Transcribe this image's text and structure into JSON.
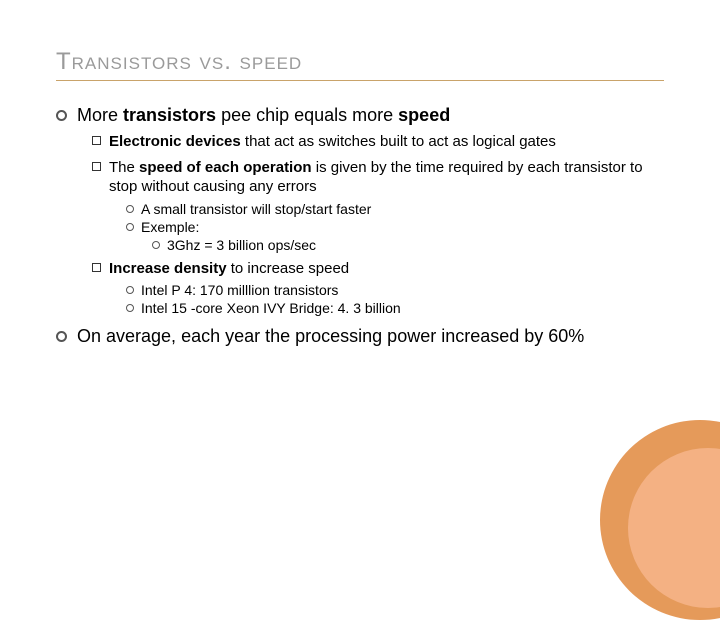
{
  "title_text": "Transistors vs. speed",
  "colors": {
    "title_color": "#9a9a9a",
    "rule_color": "#c9a36a",
    "corner_outer": "#e59a5a",
    "corner_inner": "#f4b183",
    "text": "#000000"
  },
  "bullets": {
    "b1_prefix": "More ",
    "b1_bold": "transistors",
    "b1_mid": " pee chip equals more ",
    "b1_bold2": "speed",
    "b1_1_bold": "Electronic devices",
    "b1_1_rest": " that act as switches built to act as logical gates",
    "b1_2_prefix": "The ",
    "b1_2_bold": "speed of each operation",
    "b1_2_rest": " is given by the time required by each transistor to stop without causing any errors",
    "b1_2_1": "A small transistor will stop/start faster",
    "b1_2_2": "Exemple:",
    "b1_2_2_1": "3Ghz = 3 billion ops/sec",
    "b1_3_bold": "Increase density",
    "b1_3_rest": " to increase speed",
    "b1_3_1": "Intel P 4: 170 milllion transistors",
    "b1_3_2": "Intel 15 -core Xeon IVY Bridge: 4. 3 billion",
    "b2": "On average, each year the processing power increased by 60%"
  }
}
